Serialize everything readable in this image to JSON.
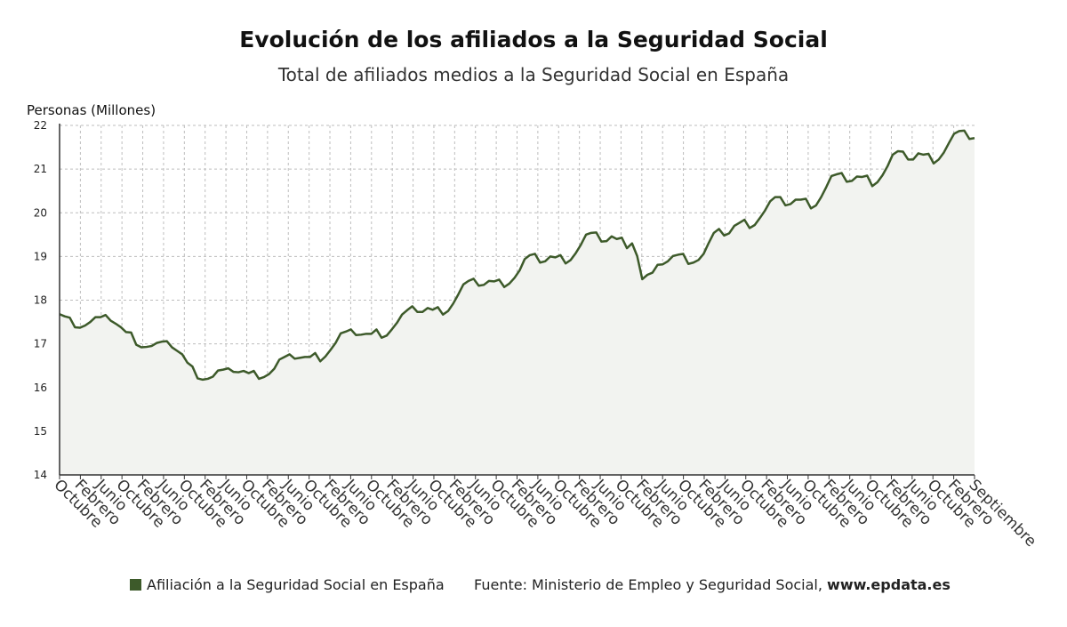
{
  "header": {
    "title": "Evolución de los afiliados a la Seguridad Social",
    "subtitle": "Total de afiliados medios a la Seguridad Social en España"
  },
  "footer": {
    "legend_label": "Afiliación a la Seguridad Social en España",
    "source_text": "Fuente: Ministerio de Empleo y Seguridad Social,",
    "source_site": "www.epdata.es"
  },
  "colors": {
    "line": "#3d5a2a",
    "area": "#f2f3f0",
    "grid": "#bdbdbd",
    "axis": "#333333"
  },
  "chart_data": {
    "type": "area",
    "title": "Evolución de los afiliados a la Seguridad Social",
    "subtitle": "Total de afiliados medios a la Seguridad Social en España",
    "ylabel": "Personas (Millones)",
    "ylim": [
      14,
      22
    ],
    "yticks": [
      14,
      15,
      16,
      17,
      18,
      19,
      20,
      21,
      22
    ],
    "grid": true,
    "legend_position": "bottom-left",
    "x_tick_labels": [
      "Octubre",
      "Febrero",
      "Junio",
      "Octubre",
      "Febrero",
      "Junio",
      "Octubre",
      "Febrero",
      "Junio",
      "Octubre",
      "Febrero",
      "Junio",
      "Octubre",
      "Febrero",
      "Junio",
      "Octubre",
      "Febrero",
      "Junio",
      "Octubre",
      "Febrero",
      "Junio",
      "Octubre",
      "Febrero",
      "Junio",
      "Octubre",
      "Febrero",
      "Junio",
      "Octubre",
      "Febrero",
      "Junio",
      "Octubre",
      "Febrero",
      "Junio",
      "Octubre",
      "Febrero",
      "Junio",
      "Octubre",
      "Febrero",
      "Junio",
      "Octubre",
      "Febrero",
      "Junio",
      "Octubre",
      "Febrero",
      "Septiembre"
    ],
    "series": [
      {
        "name": "Afiliación a la Seguridad Social en España",
        "values": [
          17.68,
          17.63,
          17.6,
          17.38,
          17.37,
          17.42,
          17.5,
          17.61,
          17.61,
          17.66,
          17.53,
          17.46,
          17.38,
          17.27,
          17.26,
          16.98,
          16.92,
          16.93,
          16.95,
          17.02,
          17.05,
          17.06,
          16.92,
          16.84,
          16.76,
          16.57,
          16.48,
          16.21,
          16.18,
          16.2,
          16.25,
          16.39,
          16.41,
          16.44,
          16.36,
          16.35,
          16.38,
          16.33,
          16.38,
          16.2,
          16.24,
          16.31,
          16.43,
          16.64,
          16.7,
          16.76,
          16.66,
          16.68,
          16.7,
          16.7,
          16.79,
          16.6,
          16.71,
          16.86,
          17.02,
          17.24,
          17.28,
          17.33,
          17.2,
          17.21,
          17.23,
          17.23,
          17.33,
          17.14,
          17.19,
          17.33,
          17.48,
          17.67,
          17.77,
          17.86,
          17.73,
          17.73,
          17.82,
          17.78,
          17.84,
          17.67,
          17.75,
          17.92,
          18.13,
          18.36,
          18.44,
          18.49,
          18.33,
          18.35,
          18.44,
          18.43,
          18.47,
          18.3,
          18.38,
          18.51,
          18.68,
          18.94,
          19.03,
          19.06,
          18.86,
          18.89,
          19.0,
          18.98,
          19.03,
          18.84,
          18.92,
          19.08,
          19.27,
          19.5,
          19.54,
          19.55,
          19.34,
          19.35,
          19.46,
          19.4,
          19.43,
          19.19,
          19.3,
          19.01,
          18.48,
          18.58,
          18.63,
          18.81,
          18.82,
          18.89,
          19.01,
          19.04,
          19.06,
          18.83,
          18.86,
          18.92,
          19.06,
          19.31,
          19.54,
          19.63,
          19.48,
          19.53,
          19.7,
          19.77,
          19.84,
          19.65,
          19.72,
          19.88,
          20.05,
          20.26,
          20.36,
          20.36,
          20.17,
          20.2,
          20.3,
          20.3,
          20.32,
          20.1,
          20.17,
          20.36,
          20.59,
          20.84,
          20.88,
          20.91,
          20.71,
          20.73,
          20.83,
          20.82,
          20.85,
          20.61,
          20.7,
          20.86,
          21.07,
          21.33,
          21.41,
          21.4,
          21.22,
          21.22,
          21.36,
          21.33,
          21.35,
          21.13,
          21.22,
          21.38,
          21.6,
          21.81,
          21.87,
          21.88,
          21.69,
          21.71
        ]
      }
    ]
  }
}
